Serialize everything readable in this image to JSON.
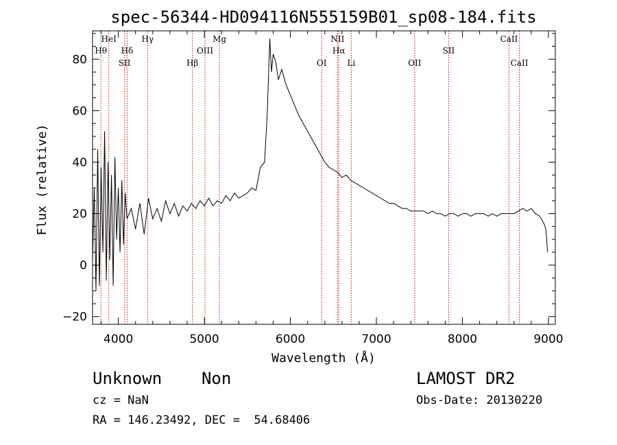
{
  "chart_data": {
    "type": "line",
    "title": "spec-56344-HD094116N555159B01_sp08-184.fits",
    "xlabel": "Wavelength (Å)",
    "ylabel": "Flux (relative)",
    "xlim": [
      3700,
      9080
    ],
    "ylim": [
      -23,
      91
    ],
    "xticks": [
      4000,
      5000,
      6000,
      7000,
      8000,
      9000
    ],
    "yticks": [
      -20,
      0,
      20,
      40,
      60,
      80
    ],
    "grid": false,
    "series": [
      {
        "x": [
          3700,
          3720,
          3740,
          3760,
          3780,
          3800,
          3820,
          3840,
          3860,
          3880,
          3900,
          3920,
          3940,
          3960,
          3980,
          4000,
          4020,
          4040,
          4060,
          4080,
          4100,
          4150,
          4200,
          4250,
          4300,
          4350,
          4400,
          4450,
          4500,
          4550,
          4600,
          4650,
          4700,
          4750,
          4800,
          4850,
          4900,
          4950,
          5000,
          5050,
          5100,
          5150,
          5200,
          5250,
          5300,
          5350,
          5400,
          5450,
          5500,
          5550,
          5600,
          5650,
          5700,
          5730,
          5760,
          5780,
          5800,
          5830,
          5860,
          5900,
          5950,
          6000,
          6050,
          6100,
          6150,
          6200,
          6250,
          6300,
          6350,
          6400,
          6450,
          6500,
          6550,
          6600,
          6650,
          6700,
          6750,
          6800,
          6850,
          6900,
          6950,
          7000,
          7050,
          7100,
          7150,
          7200,
          7250,
          7300,
          7350,
          7400,
          7450,
          7500,
          7550,
          7600,
          7650,
          7700,
          7750,
          7800,
          7850,
          7900,
          7950,
          8000,
          8050,
          8100,
          8150,
          8200,
          8250,
          8300,
          8350,
          8400,
          8450,
          8500,
          8550,
          8600,
          8650,
          8700,
          8750,
          8800,
          8850,
          8900,
          8950,
          8970,
          8990
        ],
        "y": [
          2,
          30,
          -10,
          45,
          -8,
          38,
          5,
          52,
          -6,
          40,
          2,
          35,
          -8,
          42,
          10,
          30,
          5,
          33,
          8,
          28,
          18,
          22,
          14,
          24,
          12,
          26,
          18,
          22,
          17,
          25,
          20,
          24,
          19,
          23,
          21,
          24,
          22,
          25,
          23,
          26,
          23,
          25,
          24,
          27,
          25,
          28,
          26,
          27,
          28,
          30,
          29,
          38,
          40,
          58,
          88,
          75,
          82,
          79,
          72,
          76,
          70,
          66,
          62,
          58,
          55,
          52,
          49,
          46,
          43,
          40,
          38,
          37,
          36,
          34,
          35,
          33,
          32,
          31,
          30,
          29,
          28,
          27,
          26,
          25,
          24,
          24,
          23,
          22,
          22,
          21,
          21,
          21,
          21,
          20,
          21,
          20,
          20,
          19,
          20,
          20,
          19,
          20,
          20,
          19,
          20,
          20,
          20,
          19,
          20,
          19,
          20,
          20,
          20,
          20,
          21,
          22,
          21,
          22,
          20,
          19,
          16,
          14,
          5
        ]
      }
    ],
    "lines": [
      {
        "name": "Hθ",
        "x": 3797,
        "row": 2
      },
      {
        "name": "HeI",
        "x": 3889,
        "row": 1
      },
      {
        "name": "SII",
        "x": 4072,
        "row": 3
      },
      {
        "name": "Hδ",
        "x": 4102,
        "row": 2
      },
      {
        "name": "Hγ",
        "x": 4340,
        "row": 1
      },
      {
        "name": "Hβ",
        "x": 4861,
        "row": 3
      },
      {
        "name": "OIII",
        "x": 5007,
        "row": 2
      },
      {
        "name": "Mg",
        "x": 5175,
        "row": 1
      },
      {
        "name": "OI",
        "x": 6364,
        "row": 3
      },
      {
        "name": "NII",
        "x": 6548,
        "row": 1
      },
      {
        "name": "Hα",
        "x": 6563,
        "row": 2
      },
      {
        "name": "Li",
        "x": 6708,
        "row": 3
      },
      {
        "name": "OII",
        "x": 7445,
        "row": 3
      },
      {
        "name": "SII",
        "x": 7840,
        "row": 2
      },
      {
        "name": "CaII",
        "x": 8542,
        "row": 1
      },
      {
        "name": "CaII",
        "x": 8662,
        "row": 3
      }
    ],
    "line_color": "#cc0000"
  },
  "info": {
    "classification": "Unknown    Non",
    "survey": "LAMOST DR2",
    "cz": "cz = NaN",
    "obs_date": "Obs-Date: 20130220",
    "coords": "RA = 146.23492, DEC =  54.68406"
  }
}
